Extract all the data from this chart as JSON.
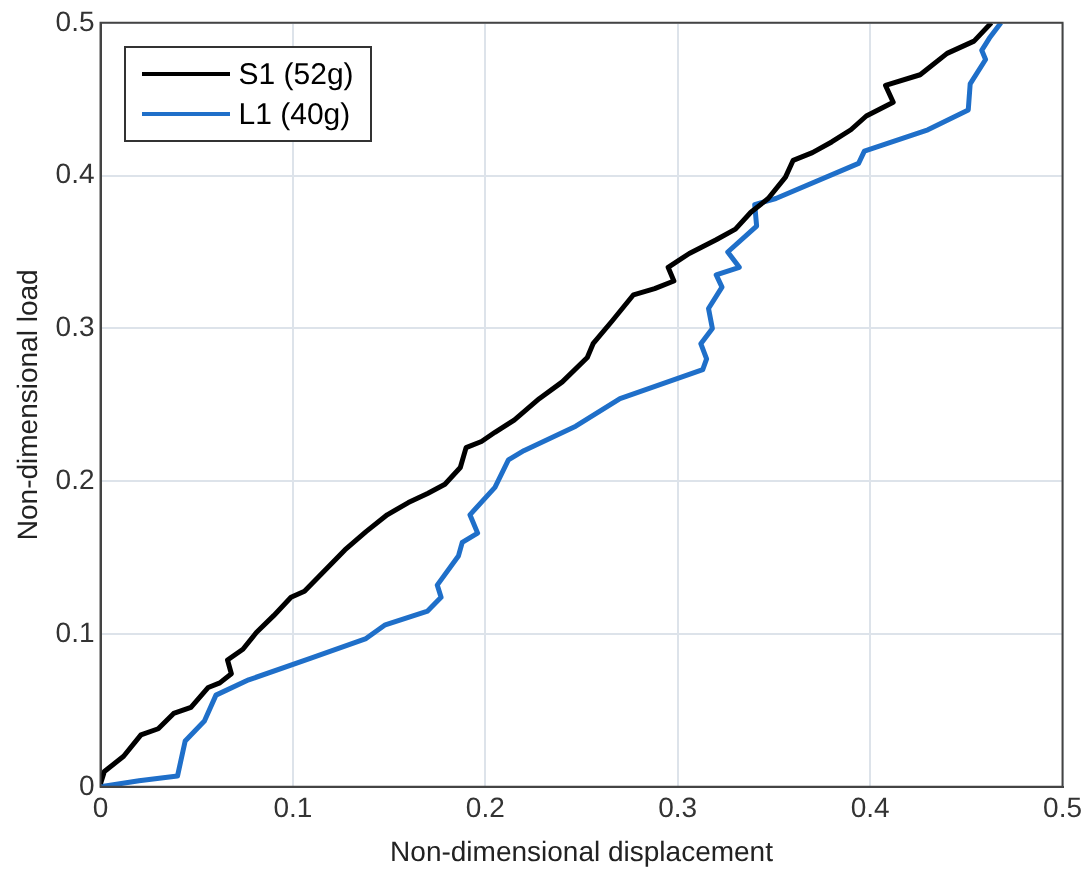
{
  "chart_data": {
    "type": "line",
    "xlabel": "Non-dimensional displacement",
    "ylabel": "Non-dimensional load",
    "xlim": [
      0,
      0.5
    ],
    "ylim": [
      0,
      0.5
    ],
    "xticks": [
      0,
      0.1,
      0.2,
      0.3,
      0.4,
      0.5
    ],
    "yticks": [
      0,
      0.1,
      0.2,
      0.3,
      0.4,
      0.5
    ],
    "grid": true,
    "legend": "top left",
    "marker": "none",
    "line_style": "solid",
    "series": [
      {
        "name": "S1 (52g)",
        "color": "#000000",
        "x": [
          0,
          0.002,
          0.012,
          0.021,
          0.03,
          0.038,
          0.047,
          0.056,
          0.062,
          0.068,
          0.066,
          0.074,
          0.081,
          0.09,
          0.099,
          0.106,
          0.113,
          0.12,
          0.127,
          0.138,
          0.149,
          0.16,
          0.17,
          0.179,
          0.187,
          0.19,
          0.198,
          0.205,
          0.215,
          0.228,
          0.24,
          0.253,
          0.256,
          0.266,
          0.277,
          0.288,
          0.298,
          0.295,
          0.306,
          0.32,
          0.33,
          0.338,
          0.347,
          0.356,
          0.36,
          0.37,
          0.38,
          0.39,
          0.398,
          0.412,
          0.408,
          0.426,
          0.44,
          0.454,
          0.463
        ],
        "values": [
          0.002,
          0.01,
          0.02,
          0.034,
          0.038,
          0.048,
          0.052,
          0.065,
          0.068,
          0.074,
          0.083,
          0.09,
          0.101,
          0.112,
          0.124,
          0.128,
          0.137,
          0.146,
          0.155,
          0.167,
          0.178,
          0.186,
          0.192,
          0.198,
          0.209,
          0.222,
          0.226,
          0.232,
          0.24,
          0.254,
          0.265,
          0.281,
          0.29,
          0.305,
          0.322,
          0.326,
          0.331,
          0.34,
          0.349,
          0.358,
          0.365,
          0.376,
          0.385,
          0.399,
          0.41,
          0.415,
          0.422,
          0.43,
          0.439,
          0.448,
          0.459,
          0.466,
          0.48,
          0.488,
          0.5
        ]
      },
      {
        "name": "L1 (40g)",
        "color": "#1f6fc9",
        "x": [
          0,
          0.02,
          0.04,
          0.044,
          0.054,
          0.06,
          0.077,
          0.109,
          0.138,
          0.148,
          0.17,
          0.177,
          0.175,
          0.186,
          0.188,
          0.196,
          0.192,
          0.205,
          0.212,
          0.22,
          0.247,
          0.27,
          0.313,
          0.315,
          0.312,
          0.318,
          0.316,
          0.323,
          0.32,
          0.332,
          0.326,
          0.341,
          0.34,
          0.351,
          0.394,
          0.397,
          0.43,
          0.451,
          0.452,
          0.46,
          0.458,
          0.462,
          0.468
        ],
        "values": [
          0,
          0.004,
          0.007,
          0.03,
          0.043,
          0.06,
          0.07,
          0.084,
          0.097,
          0.106,
          0.115,
          0.124,
          0.132,
          0.151,
          0.16,
          0.166,
          0.178,
          0.196,
          0.214,
          0.22,
          0.236,
          0.254,
          0.273,
          0.28,
          0.29,
          0.3,
          0.313,
          0.327,
          0.335,
          0.34,
          0.35,
          0.367,
          0.381,
          0.385,
          0.408,
          0.416,
          0.43,
          0.443,
          0.46,
          0.476,
          0.482,
          0.49,
          0.5
        ]
      }
    ]
  }
}
